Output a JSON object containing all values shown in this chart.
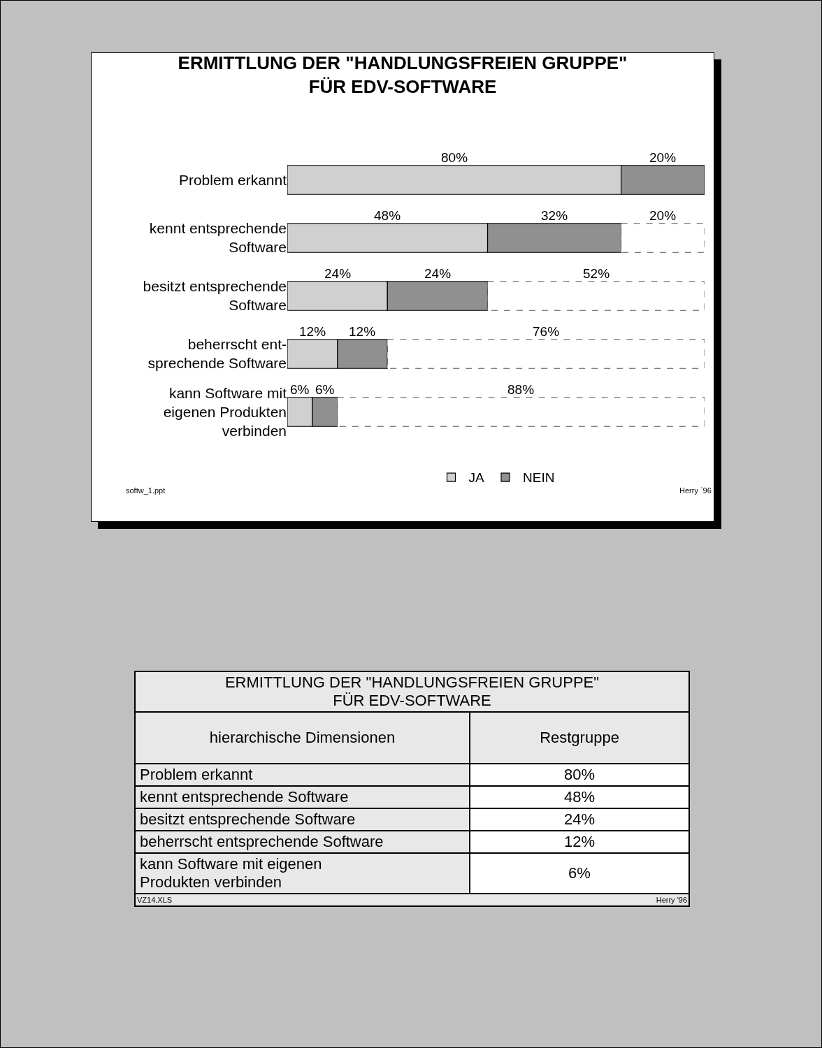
{
  "chart_data": [
    {
      "type": "bar",
      "orientation": "horizontal",
      "stacked": true,
      "title": "ERMITTLUNG DER \"HANDLUNGSFREIEN GRUPPE\"\nFÜR EDV-SOFTWARE",
      "categories": [
        "Problem erkannt",
        "kennt entsprechende\nSoftware",
        "besitzt entsprechende\nSoftware",
        "beherrscht ent-\nsprechende Software",
        "kann Software mit\neigenen Produkten\nverbinden"
      ],
      "series": [
        {
          "name": "JA",
          "color": "#d0d0d0",
          "values": [
            80,
            48,
            24,
            12,
            6
          ],
          "value_labels": [
            "80%",
            "48%",
            "24%",
            "12%",
            "6%"
          ]
        },
        {
          "name": "NEIN",
          "color": "#909090",
          "values": [
            20,
            32,
            24,
            12,
            6
          ],
          "value_labels": [
            "20%",
            "32%",
            "24%",
            "12%",
            "6%"
          ]
        },
        {
          "color": "#ffffff",
          "line_style": "dashed",
          "values": [
            null,
            20,
            52,
            76,
            88
          ],
          "value_labels": [
            null,
            "20%",
            "52%",
            "76%",
            "88%"
          ]
        }
      ],
      "xlim": [
        0,
        100
      ],
      "tick_labels": "y",
      "grid": false,
      "legend": "bottom",
      "annotations": [
        "softw_1.ppt",
        "Herry ´96"
      ]
    },
    {
      "type": "other",
      "title": "ERMITTLUNG DER \"HANDLUNGSFREIEN GRUPPE\"\nFÜR EDV-SOFTWARE",
      "xlabel": "hierarchische Dimensionen",
      "ylabel": "Restgruppe",
      "categories": [
        "Problem erkannt",
        "kennt entsprechende Software",
        "besitzt entsprechende Software",
        "beherrscht entsprechende Software",
        "kann Software mit eigenen\nProdukten verbinden"
      ],
      "value_labels": [
        "80%",
        "48%",
        "24%",
        "12%",
        "6%"
      ],
      "annotations": [
        "VZ14.XLS",
        "Herry '96"
      ]
    }
  ]
}
